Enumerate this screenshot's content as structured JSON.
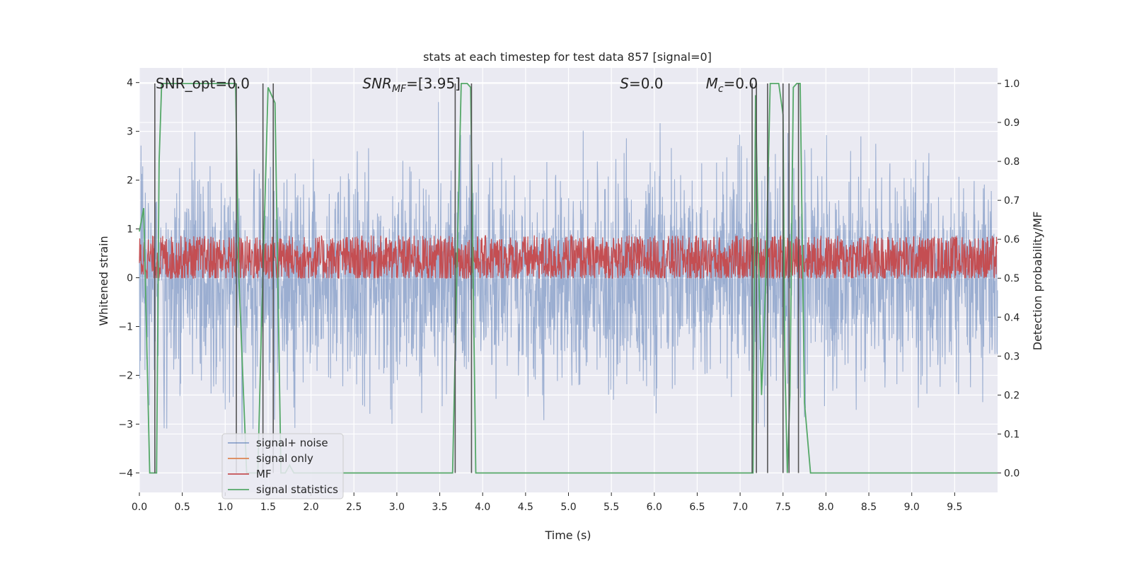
{
  "chart_data": {
    "type": "line",
    "title": "stats at each timestep for test data 857 [signal=0]",
    "xlabel": "Time (s)",
    "ylabel_left": "Whitened strain",
    "ylabel_right": "Detection probability/MF",
    "xlim": [
      0.0,
      10.0
    ],
    "ylim_left": [
      -4.4,
      4.3
    ],
    "ylim_right": [
      -0.05,
      1.04
    ],
    "x_ticks": [
      "0.0",
      "0.5",
      "1.0",
      "1.5",
      "2.0",
      "2.5",
      "3.0",
      "3.5",
      "4.0",
      "4.5",
      "5.0",
      "5.5",
      "6.0",
      "6.5",
      "7.0",
      "7.5",
      "8.0",
      "8.5",
      "9.0",
      "9.5"
    ],
    "y_left_ticks": [
      "4",
      "3",
      "2",
      "1",
      "0",
      "−1",
      "−2",
      "−3",
      "−4"
    ],
    "y_left_tick_values": [
      4,
      3,
      2,
      1,
      0,
      -1,
      -2,
      -3,
      -4
    ],
    "y_right_ticks": [
      "1.0",
      "0.9",
      "0.8",
      "0.7",
      "0.6",
      "0.5",
      "0.4",
      "0.3",
      "0.2",
      "0.1",
      "0.0"
    ],
    "y_right_tick_values": [
      1.0,
      0.9,
      0.8,
      0.7,
      0.6,
      0.5,
      0.4,
      0.3,
      0.2,
      0.1,
      0.0
    ],
    "grid": true,
    "legend_position": "lower-left",
    "annotations": [
      {
        "pre": "SNR_opt=0.0",
        "var": "",
        "sub": "",
        "post": "",
        "x": 0.19
      },
      {
        "pre": "",
        "var": "SNR",
        "sub": "MF",
        "post": "=[3.95]",
        "x": 2.6
      },
      {
        "pre": "",
        "var": "S",
        "sub": "",
        "post": "=0.0",
        "x": 5.6
      },
      {
        "pre": "",
        "var": "M",
        "sub": "c",
        "post": "=0.0",
        "x": 6.6
      }
    ],
    "series": [
      {
        "name": "signal+ noise",
        "color": "#4c72b0",
        "noise": {
          "amplitude": 1.0,
          "peak": 3.6,
          "x_start": 0.0,
          "x_end": 10.0
        }
      },
      {
        "name": "signal only",
        "color": "#dd8452",
        "values": []
      },
      {
        "name": "MF",
        "color": "#c44e52",
        "noise": {
          "mean": 0.55,
          "spread": 0.06,
          "peak": 0.63,
          "floor": 0.5
        }
      },
      {
        "name": "signal statistics",
        "color": "#55a868",
        "x": [
          0.0,
          0.05,
          0.12,
          0.2,
          0.23,
          0.26,
          1.12,
          1.16,
          1.25,
          1.38,
          1.42,
          1.5,
          1.58,
          1.65,
          1.7,
          1.75,
          1.8,
          3.65,
          3.7,
          3.75,
          3.82,
          3.86,
          3.92,
          7.15,
          7.18,
          7.22,
          7.25,
          7.3,
          7.35,
          7.4,
          7.45,
          7.5,
          7.52,
          7.55,
          7.58,
          7.62,
          7.66,
          7.7,
          7.75,
          7.82,
          10.0
        ],
        "y": [
          0.62,
          0.68,
          0.0,
          0.0,
          0.8,
          1.0,
          1.0,
          0.5,
          0.0,
          0.0,
          0.35,
          0.99,
          0.95,
          0.0,
          0.0,
          0.02,
          0.0,
          0.0,
          0.52,
          1.0,
          1.0,
          0.99,
          0.0,
          0.0,
          0.97,
          0.5,
          0.2,
          0.5,
          1.0,
          1.0,
          1.0,
          0.92,
          0.3,
          0.0,
          0.2,
          0.99,
          1.0,
          1.0,
          0.18,
          0.0,
          0.0
        ]
      }
    ],
    "vlines": [
      0.18,
      1.13,
      1.44,
      1.56,
      3.68,
      3.87,
      7.14,
      7.19,
      7.32,
      7.5,
      7.57,
      7.68
    ],
    "vline_color": "#555555"
  }
}
